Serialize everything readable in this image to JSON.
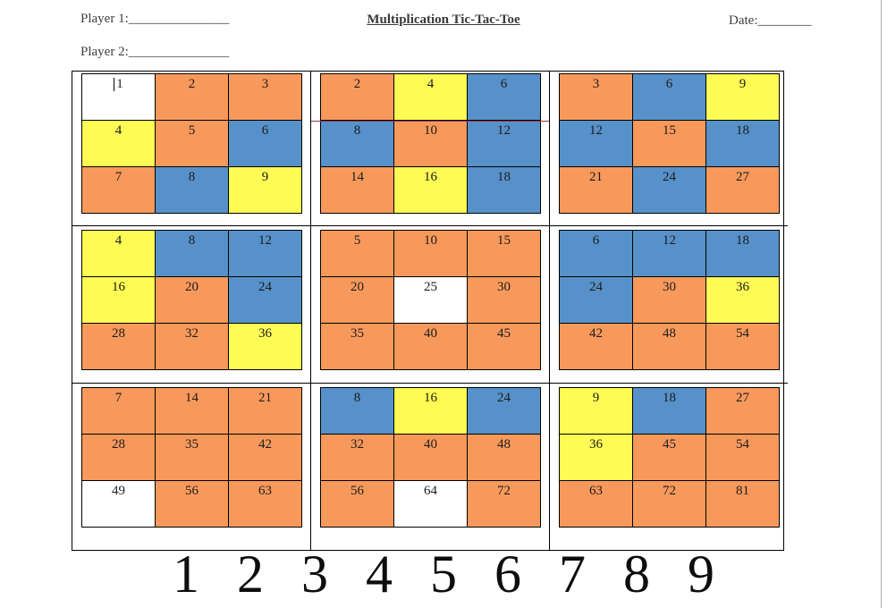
{
  "header": {
    "player1_label": "Player 1:",
    "player1_line": "_______________",
    "player2_label": "Player 2:",
    "player2_line": "_______________",
    "title": "Multiplication Tic-Tac-Toe",
    "date_label": "Date:",
    "date_line": "________"
  },
  "colors": {
    "orange": "#F8995C",
    "blue": "#5791C9",
    "yellow": "#FEFB55",
    "white": "#FFFFFF",
    "divider_red": "#993347",
    "page_edge": "#ABABAB"
  },
  "boards": [
    {
      "red_divider": false,
      "cells": [
        {
          "value": "1",
          "color": "white",
          "cursor": true
        },
        {
          "value": "2",
          "color": "orange"
        },
        {
          "value": "3",
          "color": "orange"
        },
        {
          "value": "4",
          "color": "yellow"
        },
        {
          "value": "5",
          "color": "orange"
        },
        {
          "value": "6",
          "color": "blue"
        },
        {
          "value": "7",
          "color": "orange"
        },
        {
          "value": "8",
          "color": "blue"
        },
        {
          "value": "9",
          "color": "yellow"
        }
      ]
    },
    {
      "red_divider": true,
      "cells": [
        {
          "value": "2",
          "color": "orange"
        },
        {
          "value": "4",
          "color": "yellow"
        },
        {
          "value": "6",
          "color": "blue"
        },
        {
          "value": "8",
          "color": "blue"
        },
        {
          "value": "10",
          "color": "orange"
        },
        {
          "value": "12",
          "color": "blue"
        },
        {
          "value": "14",
          "color": "orange"
        },
        {
          "value": "16",
          "color": "yellow"
        },
        {
          "value": "18",
          "color": "blue"
        }
      ]
    },
    {
      "red_divider": false,
      "cells": [
        {
          "value": "3",
          "color": "orange"
        },
        {
          "value": "6",
          "color": "blue"
        },
        {
          "value": "9",
          "color": "yellow"
        },
        {
          "value": "12",
          "color": "blue"
        },
        {
          "value": "15",
          "color": "orange"
        },
        {
          "value": "18",
          "color": "blue"
        },
        {
          "value": "21",
          "color": "orange"
        },
        {
          "value": "24",
          "color": "blue"
        },
        {
          "value": "27",
          "color": "orange"
        }
      ]
    },
    {
      "red_divider": false,
      "cells": [
        {
          "value": "4",
          "color": "yellow"
        },
        {
          "value": "8",
          "color": "blue"
        },
        {
          "value": "12",
          "color": "blue"
        },
        {
          "value": "16",
          "color": "yellow"
        },
        {
          "value": "20",
          "color": "orange"
        },
        {
          "value": "24",
          "color": "blue"
        },
        {
          "value": "28",
          "color": "orange"
        },
        {
          "value": "32",
          "color": "orange"
        },
        {
          "value": "36",
          "color": "yellow"
        }
      ]
    },
    {
      "red_divider": false,
      "cells": [
        {
          "value": "5",
          "color": "orange"
        },
        {
          "value": "10",
          "color": "orange"
        },
        {
          "value": "15",
          "color": "orange"
        },
        {
          "value": "20",
          "color": "orange"
        },
        {
          "value": "25",
          "color": "white"
        },
        {
          "value": "30",
          "color": "orange"
        },
        {
          "value": "35",
          "color": "orange"
        },
        {
          "value": "40",
          "color": "orange"
        },
        {
          "value": "45",
          "color": "orange"
        }
      ]
    },
    {
      "red_divider": false,
      "cells": [
        {
          "value": "6",
          "color": "blue"
        },
        {
          "value": "12",
          "color": "blue"
        },
        {
          "value": "18",
          "color": "blue"
        },
        {
          "value": "24",
          "color": "blue"
        },
        {
          "value": "30",
          "color": "orange"
        },
        {
          "value": "36",
          "color": "yellow"
        },
        {
          "value": "42",
          "color": "orange"
        },
        {
          "value": "48",
          "color": "orange"
        },
        {
          "value": "54",
          "color": "orange"
        }
      ]
    },
    {
      "red_divider": false,
      "cells": [
        {
          "value": "7",
          "color": "orange"
        },
        {
          "value": "14",
          "color": "orange"
        },
        {
          "value": "21",
          "color": "orange"
        },
        {
          "value": "28",
          "color": "orange"
        },
        {
          "value": "35",
          "color": "orange"
        },
        {
          "value": "42",
          "color": "orange"
        },
        {
          "value": "49",
          "color": "white"
        },
        {
          "value": "56",
          "color": "orange"
        },
        {
          "value": "63",
          "color": "orange"
        }
      ]
    },
    {
      "red_divider": false,
      "cells": [
        {
          "value": "8",
          "color": "blue"
        },
        {
          "value": "16",
          "color": "yellow"
        },
        {
          "value": "24",
          "color": "blue"
        },
        {
          "value": "32",
          "color": "orange"
        },
        {
          "value": "40",
          "color": "orange"
        },
        {
          "value": "48",
          "color": "orange"
        },
        {
          "value": "56",
          "color": "orange"
        },
        {
          "value": "64",
          "color": "white"
        },
        {
          "value": "72",
          "color": "orange"
        }
      ]
    },
    {
      "red_divider": false,
      "cells": [
        {
          "value": "9",
          "color": "yellow"
        },
        {
          "value": "18",
          "color": "blue"
        },
        {
          "value": "27",
          "color": "orange"
        },
        {
          "value": "36",
          "color": "yellow"
        },
        {
          "value": "45",
          "color": "orange"
        },
        {
          "value": "54",
          "color": "orange"
        },
        {
          "value": "63",
          "color": "orange"
        },
        {
          "value": "72",
          "color": "orange"
        },
        {
          "value": "81",
          "color": "orange"
        }
      ]
    }
  ],
  "number_strip": [
    "1",
    "2",
    "3",
    "4",
    "5",
    "6",
    "7",
    "8",
    "9"
  ]
}
